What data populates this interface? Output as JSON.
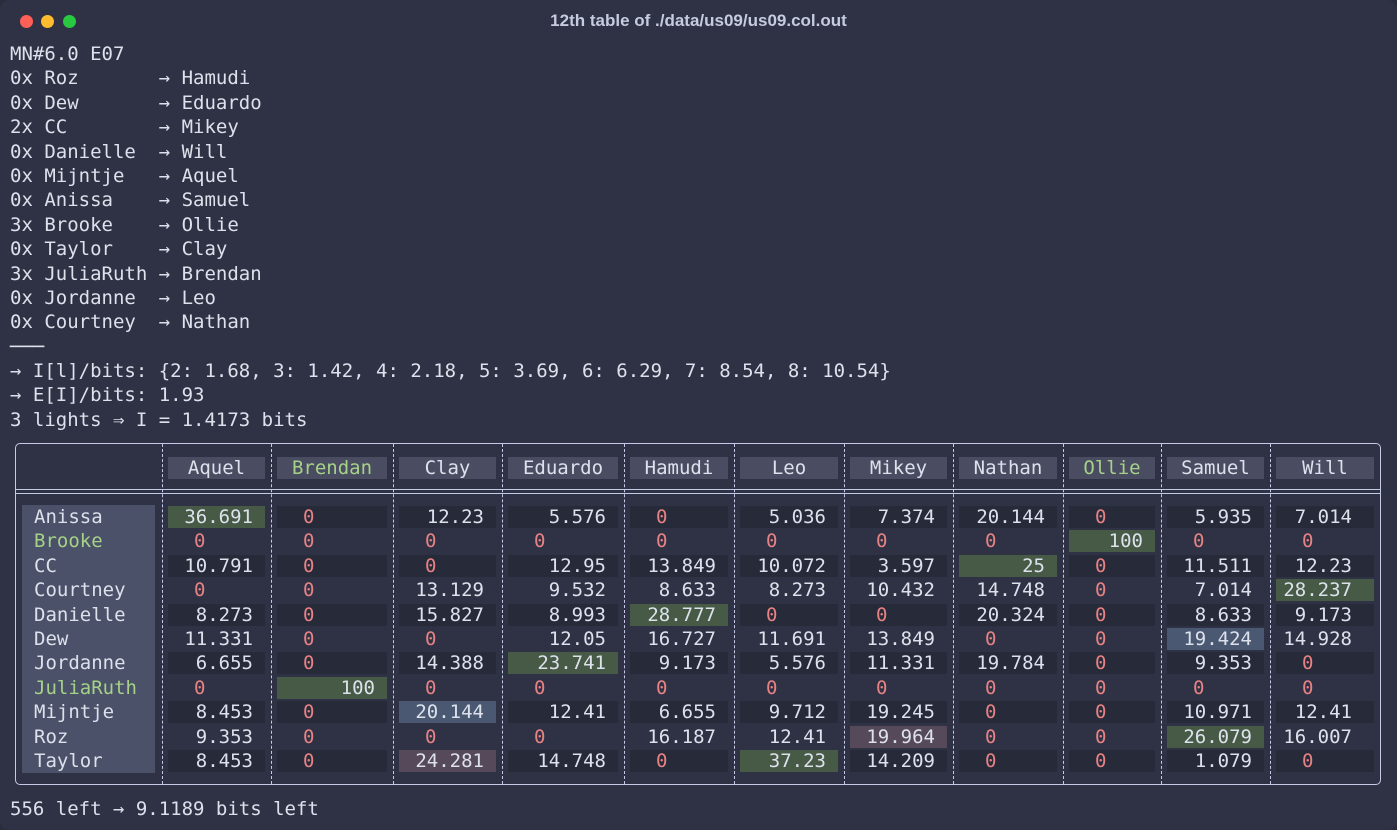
{
  "window": {
    "title": "12th table of ./data/us09/us09.col.out"
  },
  "log_lines": [
    "MN#6.0 E07",
    "0x Roz       → Hamudi",
    "0x Dew       → Eduardo",
    "2x CC        → Mikey",
    "0x Danielle  → Will",
    "0x Mijntje   → Aquel",
    "0x Anissa    → Samuel",
    "3x Brooke    → Ollie",
    "0x Taylor    → Clay",
    "3x JuliaRuth → Brendan",
    "0x Jordanne  → Leo",
    "0x Courtney  → Nathan",
    "───",
    "→ I[l]/bits: {2: 1.68, 3: 1.42, 4: 2.18, 5: 3.69, 6: 6.29, 7: 8.54, 8: 10.54}",
    "→ E[I]/bits: 1.93",
    "3 lights ⇒ I = 1.4173 bits"
  ],
  "table": {
    "columns": [
      "Aquel",
      "Brendan",
      "Clay",
      "Eduardo",
      "Hamudi",
      "Leo",
      "Mikey",
      "Nathan",
      "Ollie",
      "Samuel",
      "Will"
    ],
    "highlight_columns": [
      "Brendan",
      "Ollie"
    ],
    "rows": [
      {
        "name": "Anissa",
        "values": [
          "36.691",
          "0",
          "12.23",
          "5.576",
          "0",
          "5.036",
          "7.374",
          "20.144",
          "0",
          "5.935",
          "7.014"
        ]
      },
      {
        "name": "Brooke",
        "values": [
          "0",
          "0",
          "0",
          "0",
          "0",
          "0",
          "0",
          "0",
          "100",
          "0",
          "0"
        ]
      },
      {
        "name": "CC",
        "values": [
          "10.791",
          "0",
          "0",
          "12.95",
          "13.849",
          "10.072",
          "3.597",
          "25",
          "0",
          "11.511",
          "12.23"
        ]
      },
      {
        "name": "Courtney",
        "values": [
          "0",
          "0",
          "13.129",
          "9.532",
          "8.633",
          "8.273",
          "10.432",
          "14.748",
          "0",
          "7.014",
          "28.237"
        ]
      },
      {
        "name": "Danielle",
        "values": [
          "8.273",
          "0",
          "15.827",
          "8.993",
          "28.777",
          "0",
          "0",
          "20.324",
          "0",
          "8.633",
          "9.173"
        ]
      },
      {
        "name": "Dew",
        "values": [
          "11.331",
          "0",
          "0",
          "12.05",
          "16.727",
          "11.691",
          "13.849",
          "0",
          "0",
          "19.424",
          "14.928"
        ]
      },
      {
        "name": "Jordanne",
        "values": [
          "6.655",
          "0",
          "14.388",
          "23.741",
          "9.173",
          "5.576",
          "11.331",
          "19.784",
          "0",
          "9.353",
          "0"
        ]
      },
      {
        "name": "JuliaRuth",
        "values": [
          "0",
          "100",
          "0",
          "0",
          "0",
          "0",
          "0",
          "0",
          "0",
          "0",
          "0"
        ]
      },
      {
        "name": "Mijntje",
        "values": [
          "8.453",
          "0",
          "20.144",
          "12.41",
          "6.655",
          "9.712",
          "19.245",
          "0",
          "0",
          "10.971",
          "12.41"
        ]
      },
      {
        "name": "Roz",
        "values": [
          "9.353",
          "0",
          "0",
          "0",
          "16.187",
          "12.41",
          "19.964",
          "0",
          "0",
          "26.079",
          "16.007"
        ]
      },
      {
        "name": "Taylor",
        "values": [
          "8.453",
          "0",
          "24.281",
          "14.748",
          "0",
          "37.23",
          "14.209",
          "0",
          "0",
          "1.079",
          "0"
        ]
      }
    ],
    "highlight_rows": [
      "Brooke",
      "JuliaRuth"
    ],
    "cell_highlights": [
      {
        "row": "Anissa",
        "col": "Aquel",
        "color": "#465a46"
      },
      {
        "row": "Brooke",
        "col": "Ollie",
        "color": "#465a46"
      },
      {
        "row": "CC",
        "col": "Nathan",
        "color": "#465a46"
      },
      {
        "row": "Courtney",
        "col": "Will",
        "color": "#465a46"
      },
      {
        "row": "Danielle",
        "col": "Hamudi",
        "color": "#465a46"
      },
      {
        "row": "Dew",
        "col": "Samuel",
        "color": "#4a5872"
      },
      {
        "row": "Jordanne",
        "col": "Eduardo",
        "color": "#465a46"
      },
      {
        "row": "JuliaRuth",
        "col": "Brendan",
        "color": "#465a46"
      },
      {
        "row": "Mijntje",
        "col": "Clay",
        "color": "#4a5872"
      },
      {
        "row": "Roz",
        "col": "Mikey",
        "color": "#56495a"
      },
      {
        "row": "Roz",
        "col": "Samuel",
        "color": "#465a46"
      },
      {
        "row": "Taylor",
        "col": "Clay",
        "color": "#56495a"
      },
      {
        "row": "Taylor",
        "col": "Leo",
        "color": "#465a46"
      }
    ]
  },
  "footer": "556 left → 9.1189 bits left"
}
